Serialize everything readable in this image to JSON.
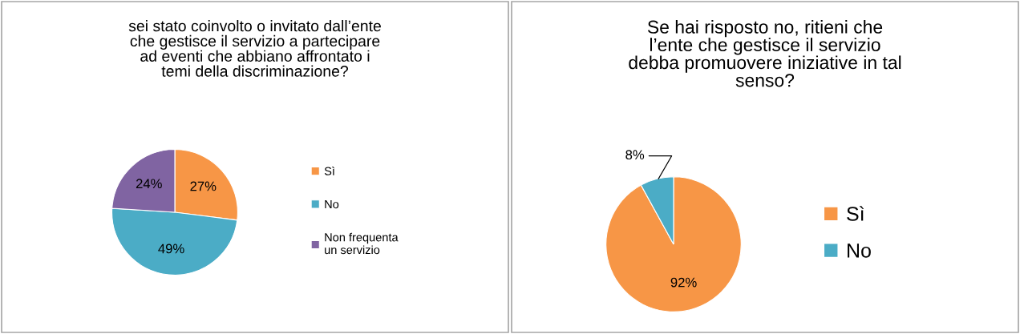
{
  "chart_data": [
    {
      "type": "pie",
      "title": "sei stato coinvolto o invitato dall’ente\nche gestisce il servizio a partecipare\nad eventi che abbiano affrontato i\ntemi della discriminazione?",
      "categories": [
        "Sì",
        "No",
        "Non frequenta\nun servizio"
      ],
      "values": [
        27,
        49,
        24
      ],
      "value_labels": [
        "27%",
        "49%",
        "24%"
      ],
      "colors": [
        "#f79646",
        "#4bacc6",
        "#8064a2"
      ],
      "legend": "right"
    },
    {
      "type": "pie",
      "title": "Se hai risposto no, ritieni che\nl’ente che gestisce il servizio\ndebba promuovere iniziative in tal\nsenso?",
      "categories": [
        "Sì",
        "No"
      ],
      "values": [
        92,
        8
      ],
      "value_labels": [
        "92%",
        "8%"
      ],
      "colors": [
        "#f79646",
        "#4bacc6"
      ],
      "legend": "right"
    }
  ]
}
